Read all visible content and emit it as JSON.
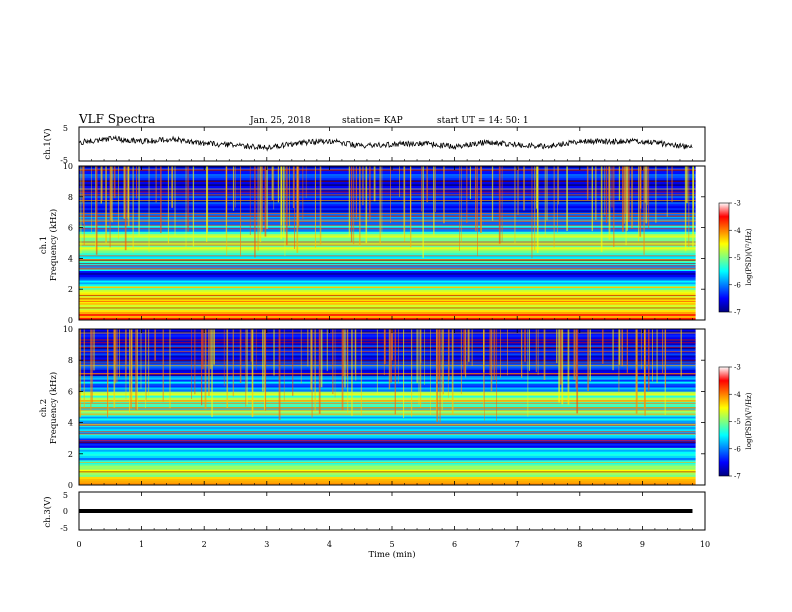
{
  "header": {
    "title": "VLF Spectra",
    "date": "Jan. 25, 2018",
    "station": "station= KAP",
    "start": "start  UT =  14: 50: 1"
  },
  "chart_data": [
    {
      "type": "line",
      "panel": "ch1-waveform",
      "ylabel": "ch.1(V)",
      "ylim": [
        -5,
        5
      ],
      "yticks": [
        "5",
        "-5"
      ],
      "xlim": [
        0,
        10
      ],
      "note": "noisy waveform, roughly between -2 and 2 V",
      "x": [
        0,
        0.5,
        1,
        1.5,
        2,
        2.5,
        3,
        3.5,
        4,
        4.5,
        5,
        5.5,
        6,
        6.5,
        7,
        7.5,
        8,
        8.5,
        9,
        9.5,
        9.8
      ],
      "values": [
        0.5,
        1.6,
        0.8,
        1.4,
        0.2,
        -0.4,
        -1.1,
        0.3,
        0.9,
        -0.6,
        -0.1,
        0.2,
        -0.9,
        0.6,
        -0.2,
        -0.7,
        0.9,
        0.7,
        0.8,
        -0.3,
        -1.2
      ]
    },
    {
      "type": "heatmap",
      "panel": "ch1-spectrogram",
      "ylabel": "ch.1",
      "ylabel2": "Frequency (kHz)",
      "ylim": [
        0,
        10
      ],
      "yticks": [
        "0",
        "2",
        "4",
        "6",
        "8",
        "10"
      ],
      "xlim": [
        0,
        10
      ],
      "colorbar": {
        "label": "log(PSD)(V²/Hz)",
        "range": [
          -7,
          -3
        ],
        "ticks": [
          "-3",
          "-4",
          "-5",
          "-6",
          "-7"
        ],
        "colormap": "jet"
      },
      "bands": [
        {
          "f": [
            0.0,
            0.4
          ],
          "level": -3.8
        },
        {
          "f": [
            0.4,
            1.0
          ],
          "level": -4.3
        },
        {
          "f": [
            1.0,
            1.6
          ],
          "level": -4.5
        },
        {
          "f": [
            1.6,
            2.2
          ],
          "level": -4.8
        },
        {
          "f": [
            2.2,
            2.8
          ],
          "level": -5.8
        },
        {
          "f": [
            2.8,
            3.2
          ],
          "level": -6.6
        },
        {
          "f": [
            3.2,
            3.8
          ],
          "level": -5.6
        },
        {
          "f": [
            3.8,
            4.6
          ],
          "level": -5.3
        },
        {
          "f": [
            4.6,
            5.6
          ],
          "level": -4.9
        },
        {
          "f": [
            5.6,
            6.4
          ],
          "level": -5.7
        },
        {
          "f": [
            6.4,
            7.0
          ],
          "level": -5.9
        },
        {
          "f": [
            7.0,
            10.0
          ],
          "level": -6.5
        }
      ]
    },
    {
      "type": "heatmap",
      "panel": "ch2-spectrogram",
      "ylabel": "ch.2",
      "ylabel2": "Frequency (kHz)",
      "ylim": [
        0,
        10
      ],
      "yticks": [
        "0",
        "2",
        "4",
        "6",
        "8",
        "10"
      ],
      "xlim": [
        0,
        10
      ],
      "colorbar": {
        "label": "log(PSD)(V²/Hz)",
        "range": [
          -7,
          -3
        ],
        "ticks": [
          "-3",
          "-4",
          "-5",
          "-6",
          "-7"
        ],
        "colormap": "jet"
      },
      "bands": [
        {
          "f": [
            0.0,
            0.4
          ],
          "level": -4.0
        },
        {
          "f": [
            0.4,
            1.0
          ],
          "level": -4.7
        },
        {
          "f": [
            1.0,
            1.6
          ],
          "level": -5.1
        },
        {
          "f": [
            1.6,
            2.4
          ],
          "level": -5.6
        },
        {
          "f": [
            2.4,
            3.0
          ],
          "level": -6.3
        },
        {
          "f": [
            3.0,
            3.6
          ],
          "level": -5.8
        },
        {
          "f": [
            3.6,
            4.4
          ],
          "level": -5.5
        },
        {
          "f": [
            4.4,
            5.2
          ],
          "level": -5.2
        },
        {
          "f": [
            5.2,
            6.0
          ],
          "level": -5.0
        },
        {
          "f": [
            6.0,
            7.0
          ],
          "level": -5.9
        },
        {
          "f": [
            7.0,
            10.0
          ],
          "level": -6.5
        }
      ]
    },
    {
      "type": "line",
      "panel": "ch3-waveform",
      "ylabel": "ch.3(V)",
      "ylim": [
        -5,
        5
      ],
      "yticks": [
        "5",
        "0",
        "-5"
      ],
      "xlim": [
        0,
        10
      ],
      "xlabel": "Time (min)",
      "xticks": [
        "0",
        "1",
        "2",
        "3",
        "4",
        "5",
        "6",
        "7",
        "8",
        "9",
        "10"
      ],
      "x": [
        0,
        9.8
      ],
      "values": [
        0,
        0
      ]
    }
  ]
}
